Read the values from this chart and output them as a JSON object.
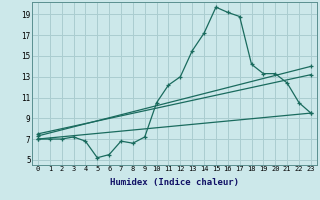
{
  "title": "",
  "xlabel": "Humidex (Indice chaleur)",
  "bg_color": "#cce8ea",
  "grid_color": "#aacdd0",
  "line_color": "#1a6b5e",
  "xlim": [
    -0.5,
    23.5
  ],
  "ylim": [
    4.5,
    20.2
  ],
  "xticks": [
    0,
    1,
    2,
    3,
    4,
    5,
    6,
    7,
    8,
    9,
    10,
    11,
    12,
    13,
    14,
    15,
    16,
    17,
    18,
    19,
    20,
    21,
    22,
    23
  ],
  "yticks": [
    5,
    7,
    9,
    11,
    13,
    15,
    17,
    19
  ],
  "line1_x": [
    0,
    1,
    2,
    3,
    4,
    5,
    6,
    7,
    8,
    9,
    10,
    11,
    12,
    13,
    14,
    15,
    16,
    17,
    18,
    19,
    20,
    21,
    22,
    23
  ],
  "line1_y": [
    7.0,
    7.0,
    7.0,
    7.2,
    6.8,
    5.2,
    5.5,
    6.8,
    6.6,
    7.2,
    10.5,
    12.2,
    13.0,
    15.5,
    17.2,
    19.7,
    19.2,
    18.8,
    14.2,
    13.3,
    13.3,
    12.4,
    10.5,
    9.5
  ],
  "line2_x": [
    0,
    23
  ],
  "line2_y": [
    7.3,
    14.0
  ],
  "line3_x": [
    0,
    23
  ],
  "line3_y": [
    7.5,
    13.2
  ],
  "line4_x": [
    0,
    23
  ],
  "line4_y": [
    7.0,
    9.5
  ]
}
